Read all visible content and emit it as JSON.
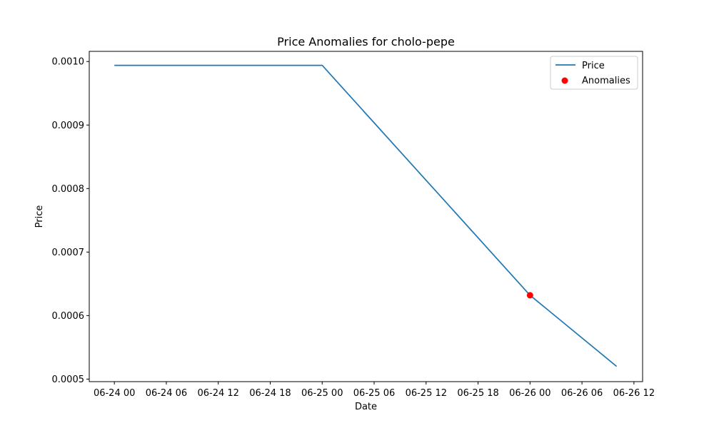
{
  "chart_data": {
    "type": "line",
    "title": "Price Anomalies for cholo-pepe",
    "xlabel": "Date",
    "ylabel": "Price",
    "x_tick_labels": [
      "06-24 00",
      "06-24 06",
      "06-24 12",
      "06-24 18",
      "06-25 00",
      "06-25 06",
      "06-25 12",
      "06-25 18",
      "06-26 00",
      "06-26 06",
      "06-26 12"
    ],
    "x_tick_hours": [
      0,
      6,
      12,
      18,
      24,
      30,
      36,
      42,
      48,
      54,
      60
    ],
    "xlim_hours": [
      -2.9,
      61.0
    ],
    "y_ticks": [
      0.0005,
      0.0006,
      0.0007,
      0.0008,
      0.0009,
      0.001
    ],
    "y_tick_labels": [
      "0.0005",
      "0.0006",
      "0.0007",
      "0.0008",
      "0.0009",
      "0.0010"
    ],
    "ylim": [
      0.000496,
      0.001016
    ],
    "grid": false,
    "legend_position": "top-right",
    "series": [
      {
        "name": "Price",
        "kind": "line",
        "color": "#1f77b4",
        "x_hours": [
          0,
          24,
          48,
          58
        ],
        "y": [
          0.000994,
          0.000994,
          0.000632,
          0.00052
        ]
      },
      {
        "name": "Anomalies",
        "kind": "scatter",
        "color": "#ff0000",
        "x_hours": [
          48
        ],
        "y": [
          0.000632
        ]
      }
    ]
  }
}
